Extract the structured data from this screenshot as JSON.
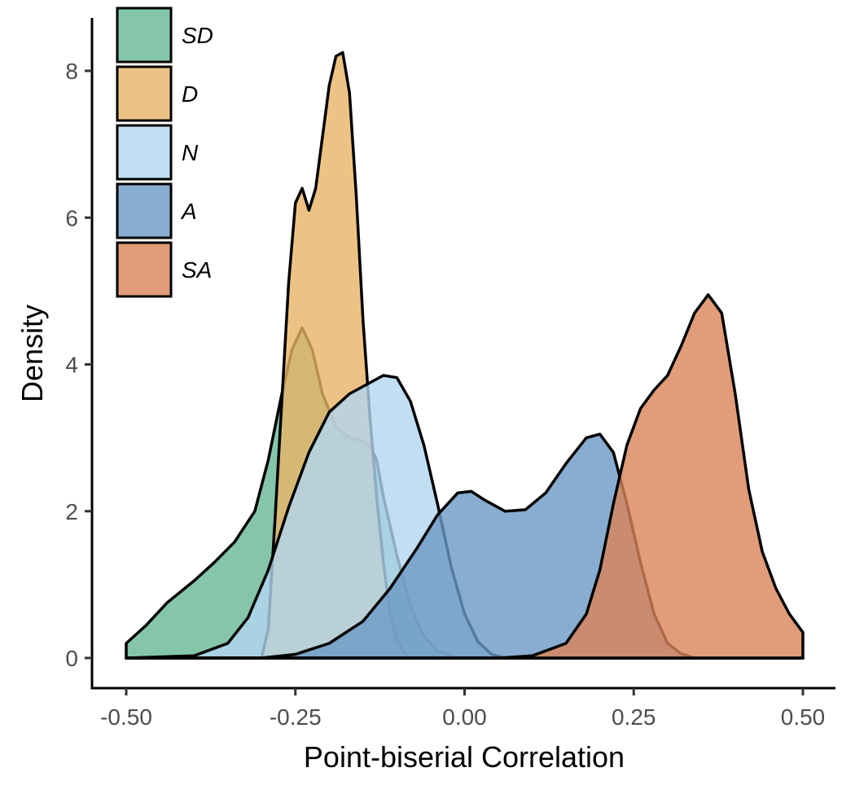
{
  "chart_data": {
    "type": "area",
    "xlabel": "Point-biserial Correlation",
    "ylabel": "Density",
    "xlim": [
      -0.5,
      0.5
    ],
    "ylim": [
      0,
      8.7
    ],
    "x_ticks": [
      -0.5,
      -0.25,
      0.0,
      0.25,
      0.5
    ],
    "x_tick_labels": [
      "-0.50",
      "-0.25",
      "0.00",
      "0.25",
      "0.50"
    ],
    "y_ticks": [
      0,
      2,
      4,
      6,
      8
    ],
    "y_tick_labels": [
      "0",
      "2",
      "4",
      "6",
      "8"
    ],
    "grid": false,
    "legend_position": "top-left",
    "series": [
      {
        "name": "SD",
        "color": "#66b896",
        "points": [
          [
            -0.5,
            0.2
          ],
          [
            -0.47,
            0.45
          ],
          [
            -0.44,
            0.75
          ],
          [
            -0.4,
            1.05
          ],
          [
            -0.37,
            1.3
          ],
          [
            -0.34,
            1.58
          ],
          [
            -0.31,
            2.0
          ],
          [
            -0.29,
            2.7
          ],
          [
            -0.27,
            3.6
          ],
          [
            -0.255,
            4.2
          ],
          [
            -0.24,
            4.5
          ],
          [
            -0.225,
            4.2
          ],
          [
            -0.21,
            3.6
          ],
          [
            -0.19,
            3.15
          ],
          [
            -0.17,
            3.0
          ],
          [
            -0.15,
            2.95
          ],
          [
            -0.14,
            2.9
          ],
          [
            -0.13,
            2.7
          ],
          [
            -0.12,
            2.2
          ],
          [
            -0.1,
            1.4
          ],
          [
            -0.08,
            0.7
          ],
          [
            -0.06,
            0.3
          ],
          [
            -0.04,
            0.1
          ],
          [
            -0.01,
            0.0
          ],
          [
            0.5,
            0.0
          ]
        ]
      },
      {
        "name": "D",
        "color": "#e8b466",
        "points": [
          [
            -0.5,
            0.0
          ],
          [
            -0.3,
            0.0
          ],
          [
            -0.29,
            0.4
          ],
          [
            -0.28,
            1.9
          ],
          [
            -0.27,
            3.5
          ],
          [
            -0.26,
            5.1
          ],
          [
            -0.25,
            6.2
          ],
          [
            -0.24,
            6.4
          ],
          [
            -0.23,
            6.1
          ],
          [
            -0.22,
            6.4
          ],
          [
            -0.21,
            7.1
          ],
          [
            -0.2,
            7.8
          ],
          [
            -0.19,
            8.2
          ],
          [
            -0.18,
            8.25
          ],
          [
            -0.17,
            7.7
          ],
          [
            -0.16,
            6.3
          ],
          [
            -0.15,
            4.6
          ],
          [
            -0.14,
            3.3
          ],
          [
            -0.13,
            2.2
          ],
          [
            -0.12,
            1.3
          ],
          [
            -0.11,
            0.6
          ],
          [
            -0.1,
            0.25
          ],
          [
            -0.09,
            0.08
          ],
          [
            -0.08,
            0.0
          ],
          [
            0.5,
            0.0
          ]
        ]
      },
      {
        "name": "N",
        "color": "#b2d6f0",
        "points": [
          [
            -0.5,
            0.0
          ],
          [
            -0.4,
            0.03
          ],
          [
            -0.35,
            0.2
          ],
          [
            -0.32,
            0.55
          ],
          [
            -0.29,
            1.2
          ],
          [
            -0.26,
            2.05
          ],
          [
            -0.23,
            2.8
          ],
          [
            -0.2,
            3.35
          ],
          [
            -0.17,
            3.6
          ],
          [
            -0.14,
            3.75
          ],
          [
            -0.12,
            3.85
          ],
          [
            -0.1,
            3.82
          ],
          [
            -0.08,
            3.5
          ],
          [
            -0.06,
            2.9
          ],
          [
            -0.04,
            2.1
          ],
          [
            -0.02,
            1.25
          ],
          [
            0.0,
            0.6
          ],
          [
            0.02,
            0.22
          ],
          [
            0.04,
            0.05
          ],
          [
            0.06,
            0.0
          ],
          [
            0.5,
            0.0
          ]
        ]
      },
      {
        "name": "A",
        "color": "#6b98c4",
        "points": [
          [
            -0.5,
            0.0
          ],
          [
            -0.3,
            0.0
          ],
          [
            -0.25,
            0.05
          ],
          [
            -0.2,
            0.2
          ],
          [
            -0.15,
            0.5
          ],
          [
            -0.11,
            0.95
          ],
          [
            -0.07,
            1.5
          ],
          [
            -0.04,
            1.95
          ],
          [
            -0.01,
            2.25
          ],
          [
            0.01,
            2.27
          ],
          [
            0.03,
            2.15
          ],
          [
            0.06,
            2.0
          ],
          [
            0.09,
            2.02
          ],
          [
            0.12,
            2.25
          ],
          [
            0.15,
            2.65
          ],
          [
            0.18,
            3.0
          ],
          [
            0.2,
            3.05
          ],
          [
            0.22,
            2.8
          ],
          [
            0.24,
            2.1
          ],
          [
            0.26,
            1.3
          ],
          [
            0.28,
            0.6
          ],
          [
            0.3,
            0.2
          ],
          [
            0.32,
            0.06
          ],
          [
            0.34,
            0.0
          ],
          [
            0.5,
            0.0
          ]
        ]
      },
      {
        "name": "SA",
        "color": "#d98357",
        "points": [
          [
            -0.5,
            0.0
          ],
          [
            0.05,
            0.0
          ],
          [
            0.1,
            0.03
          ],
          [
            0.15,
            0.2
          ],
          [
            0.18,
            0.6
          ],
          [
            0.2,
            1.2
          ],
          [
            0.22,
            2.1
          ],
          [
            0.24,
            2.9
          ],
          [
            0.26,
            3.4
          ],
          [
            0.28,
            3.65
          ],
          [
            0.3,
            3.85
          ],
          [
            0.32,
            4.25
          ],
          [
            0.34,
            4.7
          ],
          [
            0.36,
            4.95
          ],
          [
            0.38,
            4.7
          ],
          [
            0.4,
            3.6
          ],
          [
            0.42,
            2.3
          ],
          [
            0.44,
            1.45
          ],
          [
            0.46,
            0.95
          ],
          [
            0.48,
            0.6
          ],
          [
            0.5,
            0.35
          ]
        ]
      }
    ]
  }
}
